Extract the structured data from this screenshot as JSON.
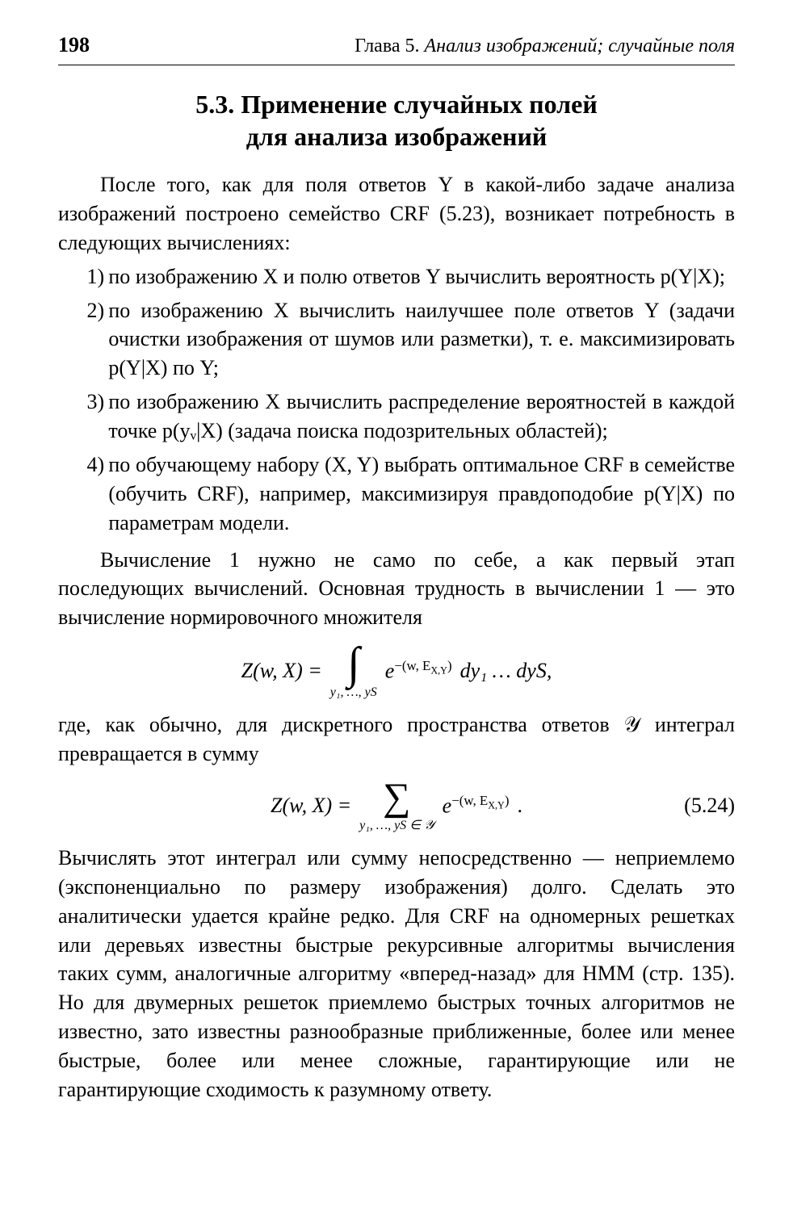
{
  "page_number": "198",
  "chapter_label": "Глава 5.",
  "chapter_title": "Анализ изображений; случайные поля",
  "section_heading_line1": "5.3. Применение случайных полей",
  "section_heading_line2": "для анализа изображений",
  "para1": "После того, как для поля ответов Y в какой-либо задаче анализа изображений построено семейство CRF (5.23), возникает потребность в следующих вычислениях:",
  "items": [
    {
      "num": "1)",
      "text": "по изображению X и полю ответов Y вычислить вероятность p(Y|X);"
    },
    {
      "num": "2)",
      "text": "по изображению X вычислить наилучшее поле ответов Y (задачи очистки изображения от шумов или разметки), т. е. максимизировать p(Y|X) по Y;"
    },
    {
      "num": "3)",
      "text": "по изображению X вычислить распределение вероятностей в каждой точке p(yᵥ|X) (задача поиска подозрительных областей);"
    },
    {
      "num": "4)",
      "text": "по обучающему набору (X, Y) выбрать оптимальное CRF в семействе (обучить CRF), например, максимизируя правдоподобие p(Y|X) по параметрам модели."
    }
  ],
  "para2": "Вычисление 1 нужно не само по себе, а как первый этап последующих вычислений. Основная трудность в вычислении 1 — это вычисление нормировочного множителя",
  "eq1_lhs": "Z(w, X) =",
  "eq1_sub": "y₁, …, yS",
  "eq1_exp": "−(w, E",
  "eq1_exp_sub": "X,Y",
  "eq1_exp_close": ")",
  "eq1_tail": " dy₁ … dyS,",
  "para3": "где, как обычно, для дискретного пространства ответов 𝒴 интеграл превращается в сумму",
  "eq2_lhs": "Z(w, X) =",
  "eq2_sub": "y₁, …, yS ∈ 𝒴",
  "eq2_exp": "−(w, E",
  "eq2_exp_sub": "X,Y",
  "eq2_exp_close": ")",
  "eq2_tail": ".",
  "eq2_number": "(5.24)",
  "para4": "Вычислять этот интеграл или сумму непосредственно — неприемлемо (экспоненциально по размеру изображения) долго. Сделать это аналитически удается крайне редко. Для CRF на одномерных решетках или деревьях известны быстрые рекурсивные алгоритмы вычисления таких сумм, аналогичные алгоритму «вперед-назад» для HMM (стр. 135). Но для двумерных решеток приемлемо быстрых точных алгоритмов не известно, зато известны разнообразные приближенные, более или менее быстрые, более или менее сложные, гарантирующие или не гарантирующие сходимость к разумному ответу."
}
